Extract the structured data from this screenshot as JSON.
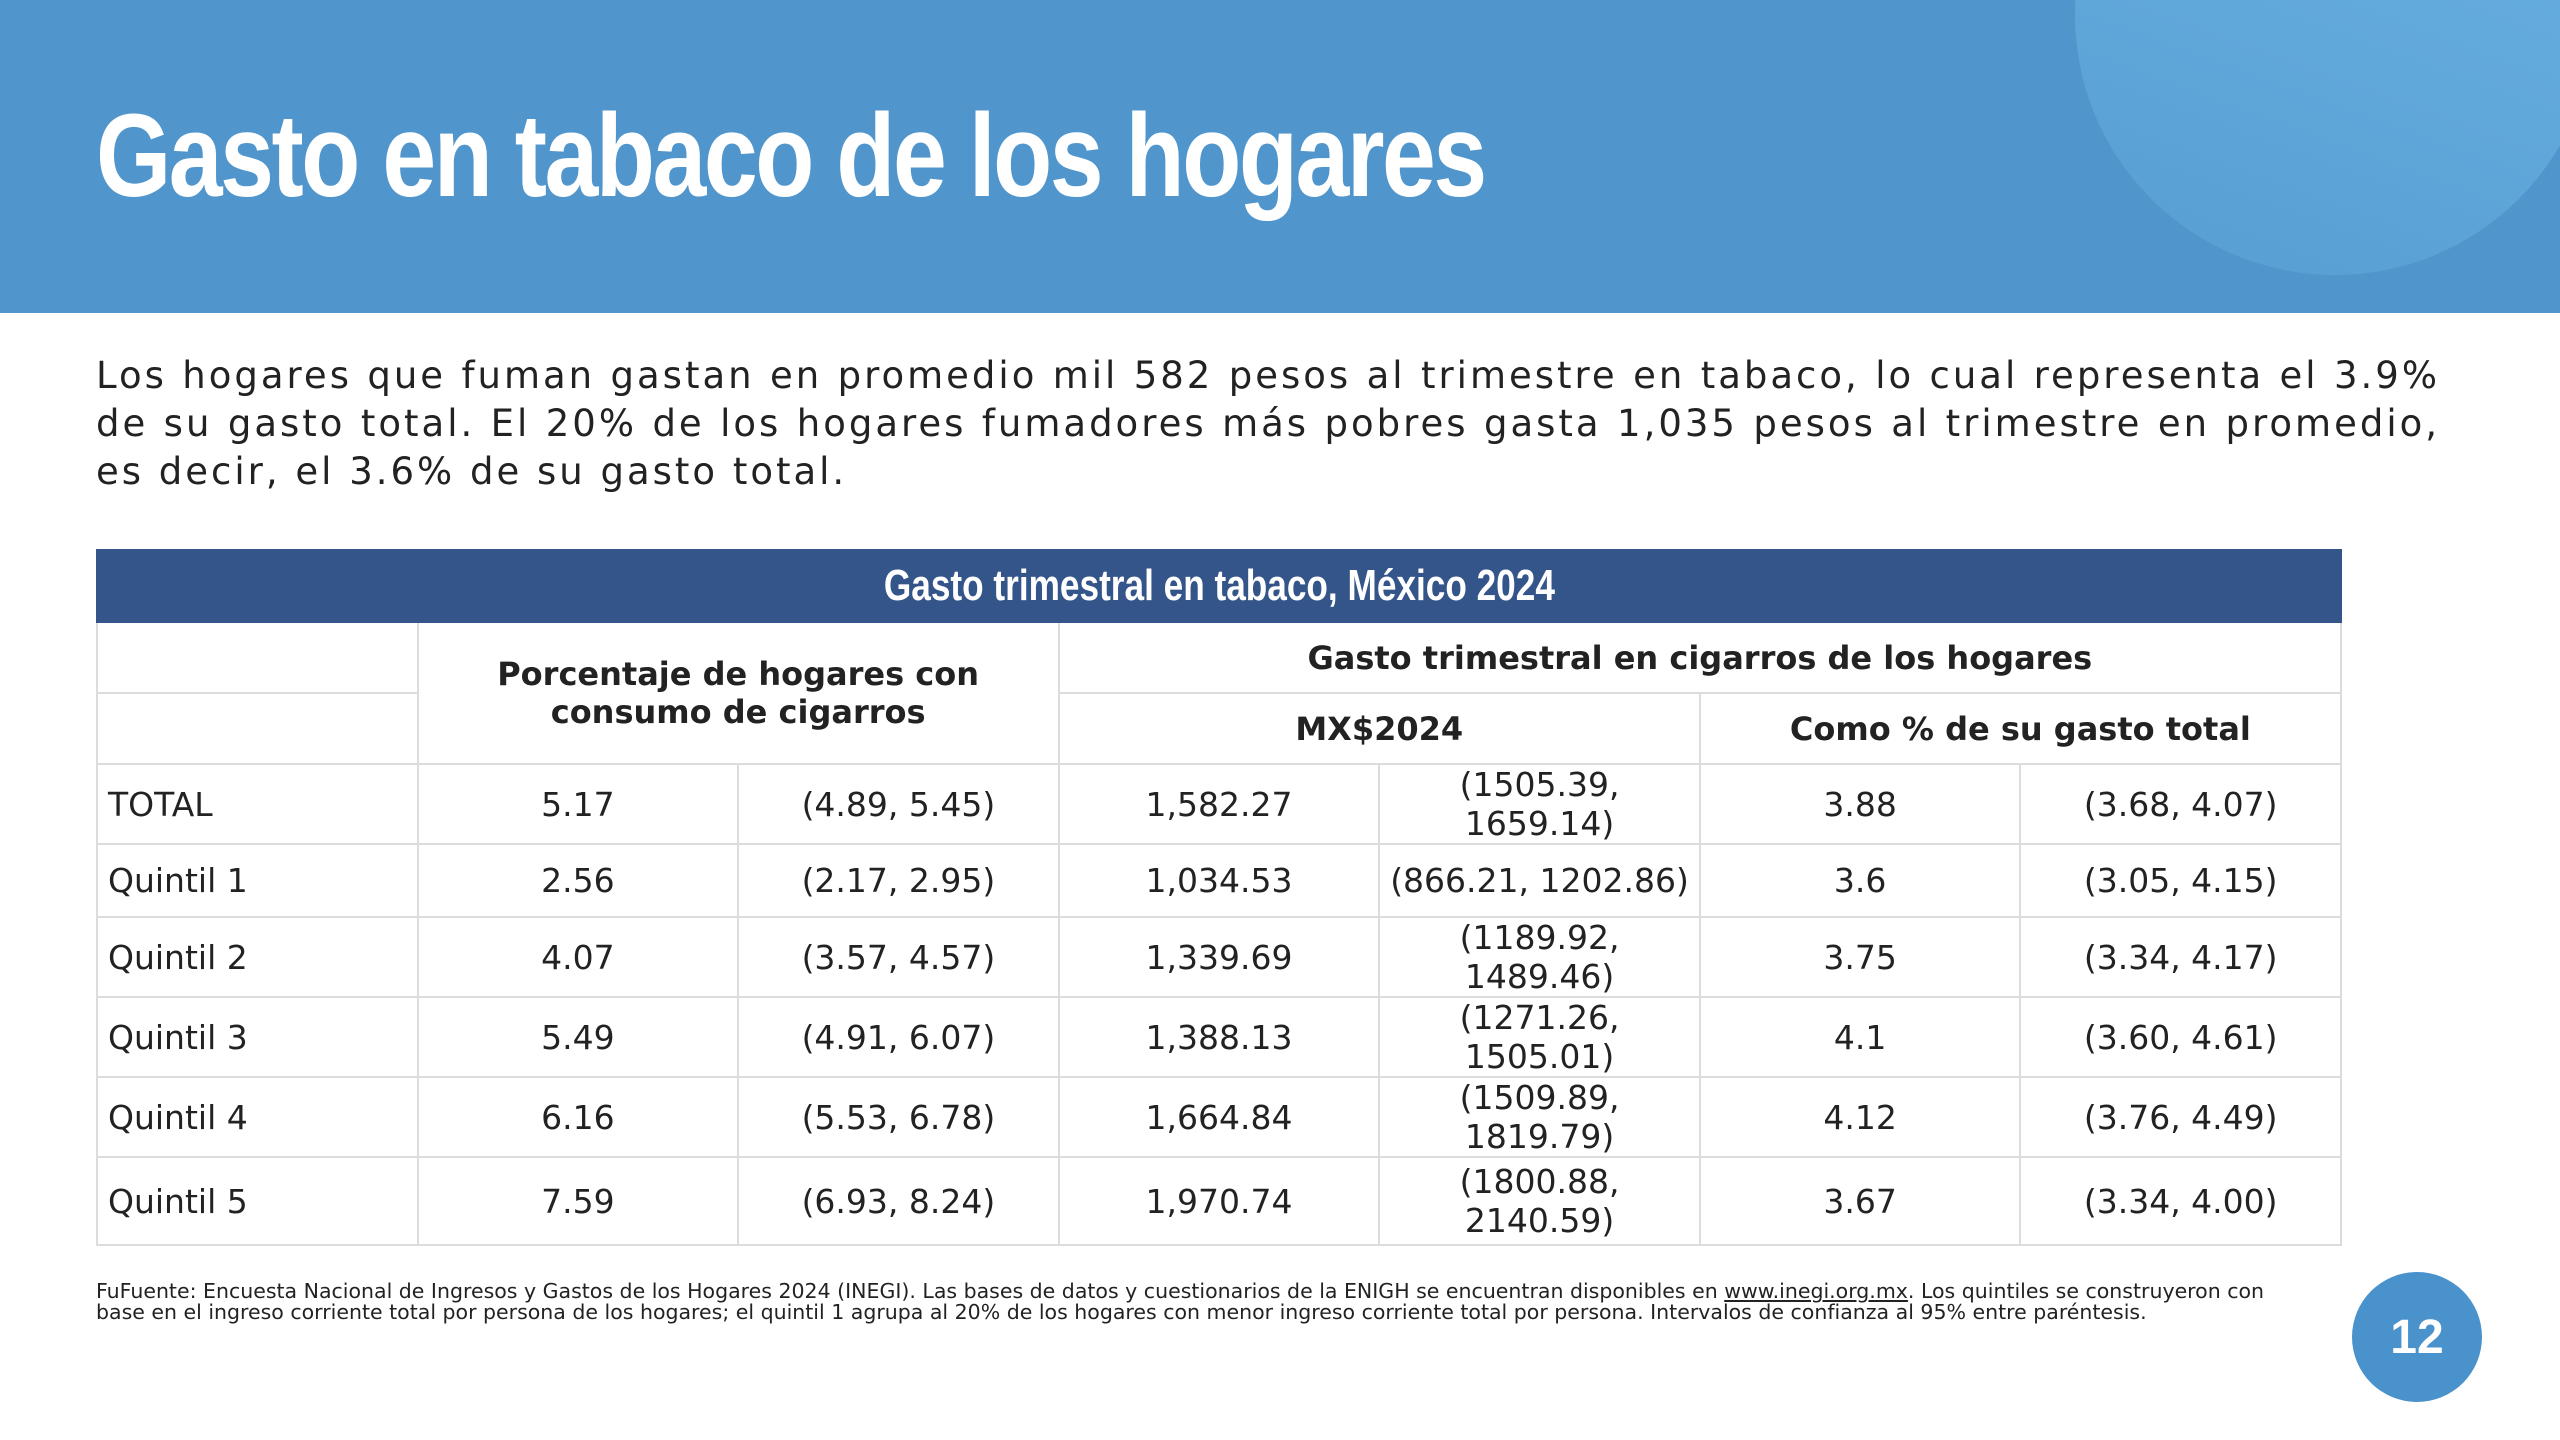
{
  "header": {
    "title": "Gasto en tabaco de los hogares"
  },
  "intro": "Los hogares que fuman gastan en promedio mil 582 pesos al trimestre en tabaco, lo cual representa el 3.9% de su gasto total. El 20% de los hogares fumadores más pobres gasta 1,035 pesos al trimestre en promedio, es decir, el 3.6% de su gasto total.",
  "table": {
    "title": "Gasto trimestral en tabaco, México 2024",
    "headers": {
      "pct": "Porcentaje de hogares con consumo de cigarros",
      "gasto": "Gasto trimestral en cigarros de los hogares",
      "mx": "MX$2024",
      "pct_gasto": "Como % de su gasto total"
    },
    "rows": [
      [
        "TOTAL",
        "5.17",
        "(4.89, 5.45)",
        "1,582.27",
        "(1505.39, 1659.14)",
        "3.88",
        "(3.68, 4.07)"
      ],
      [
        "Quintil 1",
        "2.56",
        "(2.17, 2.95)",
        "1,034.53",
        "(866.21, 1202.86)",
        "3.6",
        "(3.05, 4.15)"
      ],
      [
        "Quintil 2",
        "4.07",
        "(3.57, 4.57)",
        "1,339.69",
        "(1189.92, 1489.46)",
        "3.75",
        "(3.34, 4.17)"
      ],
      [
        "Quintil 3",
        "5.49",
        "(4.91, 6.07)",
        "1,388.13",
        "(1271.26, 1505.01)",
        "4.1",
        "(3.60, 4.61)"
      ],
      [
        "Quintil 4",
        "6.16",
        "(5.53, 6.78)",
        "1,664.84",
        "(1509.89, 1819.79)",
        "4.12",
        "(3.76, 4.49)"
      ],
      [
        "Quintil 5",
        "7.59",
        "(6.93, 8.24)",
        "1,970.74",
        "(1800.88, 2140.59)",
        "3.67",
        "(3.34, 4.00)"
      ]
    ]
  },
  "footnote": {
    "before": "FuFuente: Encuesta Nacional de Ingresos y Gastos de los Hogares 2024 (INEGI). Las bases de datos y cuestionarios de la ENIGH se encuentran disponibles en ",
    "link": "www.inegi.org.mx",
    "after": ". Los quintiles se construyeron con base en el ingreso corriente total por persona de los hogares; el quintil 1 agrupa al 20% de los hogares con menor ingreso corriente total por persona. Intervalos de confianza al 95% entre paréntesis."
  },
  "page_number": "12"
}
